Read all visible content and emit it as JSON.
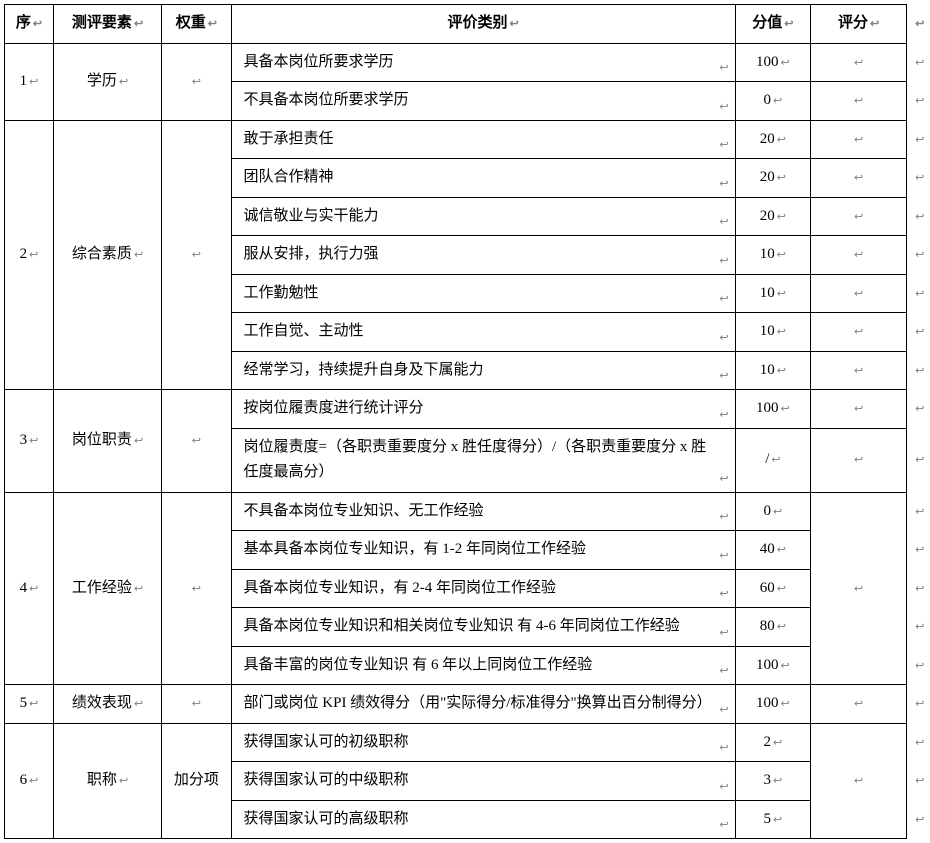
{
  "header": {
    "seq": "序",
    "factor": "测评要素",
    "weight": "权重",
    "category": "评价类别",
    "value": "分值",
    "score": "评分"
  },
  "marker_glyph": "↩",
  "sections": [
    {
      "seq": "1",
      "factor": "学历",
      "weight": "",
      "rows": [
        {
          "category": "具备本岗位所要求学历",
          "value": "100",
          "score": ""
        },
        {
          "category": "不具备本岗位所要求学历",
          "value": "0",
          "score": ""
        }
      ],
      "score_merge": false
    },
    {
      "seq": "2",
      "factor": "综合素质",
      "weight": "",
      "rows": [
        {
          "category": "敢于承担责任",
          "value": "20",
          "score": ""
        },
        {
          "category": "团队合作精神",
          "value": "20",
          "score": ""
        },
        {
          "category": "诚信敬业与实干能力",
          "value": "20",
          "score": ""
        },
        {
          "category": "服从安排，执行力强",
          "value": "10",
          "score": ""
        },
        {
          "category": "工作勤勉性",
          "value": "10",
          "score": ""
        },
        {
          "category": "工作自觉、主动性",
          "value": "10",
          "score": ""
        },
        {
          "category": "经常学习，持续提升自身及下属能力",
          "value": "10",
          "score": ""
        }
      ],
      "score_merge": false
    },
    {
      "seq": "3",
      "factor": "岗位职责",
      "weight": "",
      "rows": [
        {
          "category": "按岗位履责度进行统计评分",
          "value": "100",
          "score": ""
        },
        {
          "category": "岗位履责度=（各职责重要度分 x 胜任度得分）/（各职责重要度分 x 胜任度最高分）",
          "value": "/",
          "score": "",
          "no_value_marker": true
        }
      ],
      "score_merge": false
    },
    {
      "seq": "4",
      "factor": "工作经验",
      "weight": "",
      "rows": [
        {
          "category": "不具备本岗位专业知识、无工作经验",
          "value": "0",
          "score": ""
        },
        {
          "category": "基本具备本岗位专业知识，有 1-2 年同岗位工作经验",
          "value": "40",
          "score": ""
        },
        {
          "category": "具备本岗位专业知识，有 2-4 年同岗位工作经验",
          "value": "60",
          "score": ""
        },
        {
          "category": "具备本岗位专业知识和相关岗位专业知识 有 4-6 年同岗位工作经验",
          "value": "80",
          "score": ""
        },
        {
          "category": "具备丰富的岗位专业知识 有 6 年以上同岗位工作经验",
          "value": "100",
          "score": ""
        }
      ],
      "score_merge": true
    },
    {
      "seq": "5",
      "factor": "绩效表现",
      "weight": "",
      "rows": [
        {
          "category": "部门或岗位 KPI 绩效得分（用\"实际得分/标准得分\"换算出百分制得分）",
          "value": "100",
          "score": ""
        }
      ],
      "score_merge": false
    },
    {
      "seq": "6",
      "factor": "职称",
      "weight": "加分项",
      "weight_plain": true,
      "rows": [
        {
          "category": "获得国家认可的初级职称",
          "value": "2",
          "score": ""
        },
        {
          "category": "获得国家认可的中级职称",
          "value": "3",
          "score": ""
        },
        {
          "category": "获得国家认可的高级职称",
          "value": "5",
          "score": ""
        }
      ],
      "score_merge": true
    }
  ]
}
